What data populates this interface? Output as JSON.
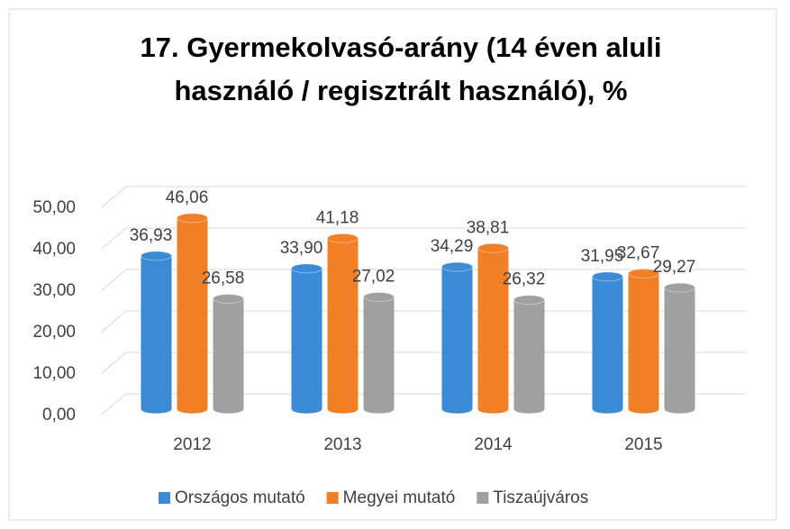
{
  "chart_data": {
    "type": "bar",
    "title": [
      "17. Gyermekolvasó-arány (14 éven aluli",
      "használó / regisztrált használó), %"
    ],
    "categories": [
      "2012",
      "2013",
      "2014",
      "2015"
    ],
    "series": [
      {
        "name": "Országos mutató",
        "color": "#3a8ad6",
        "values": [
          36.93,
          33.9,
          34.29,
          31.95
        ],
        "value_labels": [
          "36,93",
          "33,90",
          "34,29",
          "31,95"
        ]
      },
      {
        "name": "Megyei mutató",
        "color": "#f07f25",
        "values": [
          46.06,
          41.18,
          38.81,
          32.67
        ],
        "value_labels": [
          "46,06",
          "41,18",
          "38,81",
          "32,67"
        ]
      },
      {
        "name": "Tiszaújváros",
        "color": "#a0a0a0",
        "values": [
          26.58,
          27.02,
          26.32,
          29.27
        ],
        "value_labels": [
          "26,58",
          "27,02",
          "26,32",
          "29,27"
        ]
      }
    ],
    "ylim": [
      0,
      50
    ],
    "yticks": [
      {
        "value": 0,
        "label": "0,00"
      },
      {
        "value": 10,
        "label": "10,00"
      },
      {
        "value": 20,
        "label": "20,00"
      },
      {
        "value": 30,
        "label": "30,00"
      },
      {
        "value": 40,
        "label": "40,00"
      },
      {
        "value": 50,
        "label": "50,00"
      }
    ],
    "grid": true,
    "legend": "bottom"
  }
}
